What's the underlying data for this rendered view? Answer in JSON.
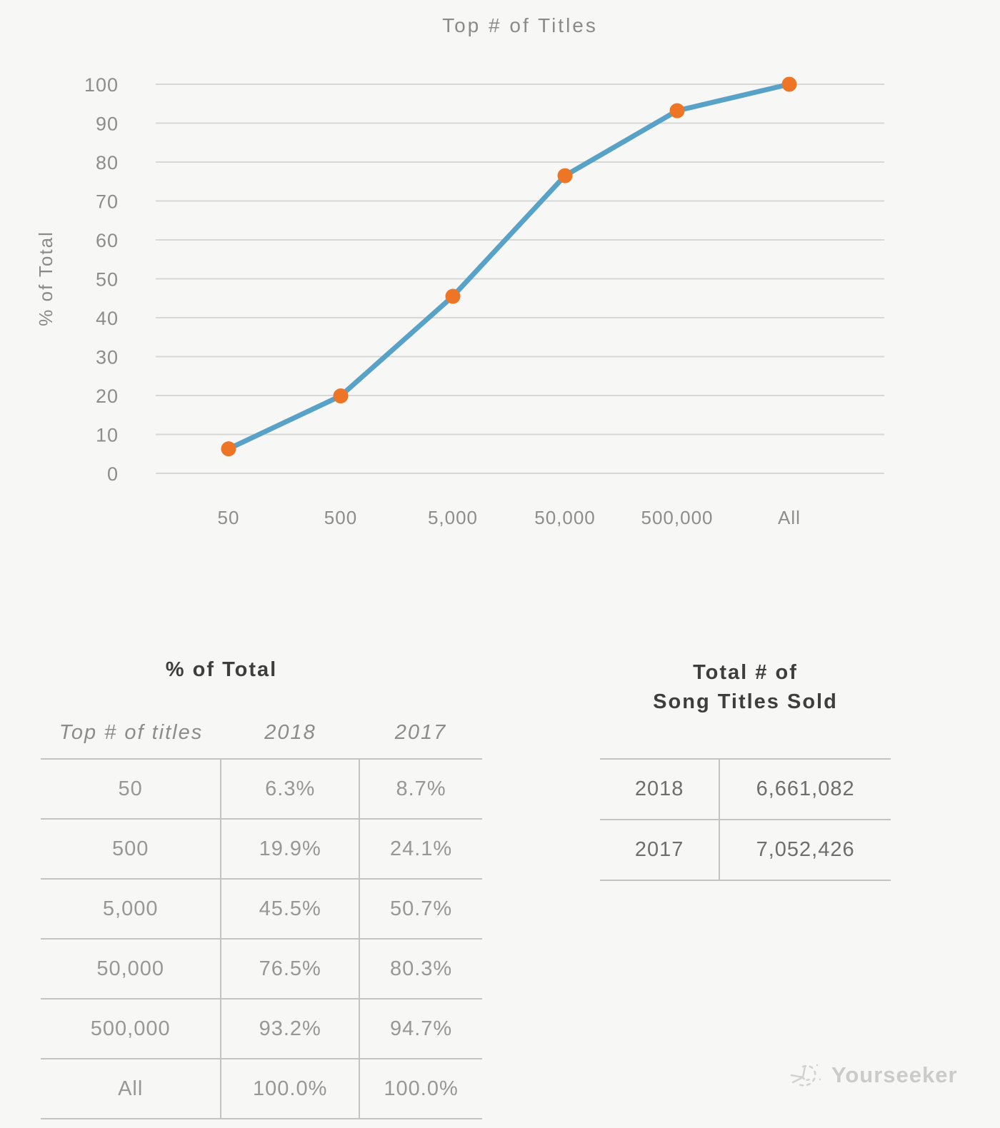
{
  "chart_data": {
    "type": "line",
    "title": "Top # of Titles",
    "xlabel": "",
    "ylabel": "% of Total",
    "categories": [
      "50",
      "500",
      "5,000",
      "50,000",
      "500,000",
      "All"
    ],
    "series": [
      {
        "name": "2018",
        "values": [
          6.3,
          19.9,
          45.5,
          76.5,
          93.2,
          100.0
        ]
      }
    ],
    "ylim": [
      0,
      100
    ],
    "yticks": [
      0,
      10,
      20,
      30,
      40,
      50,
      60,
      70,
      80,
      90,
      100
    ],
    "grid": true,
    "legend_position": "none",
    "line_color": "#58a1c7",
    "marker_color": "#ee7426",
    "grid_color": "#d7d7d5",
    "tick_color": "#8d8d8d"
  },
  "pct_table": {
    "title": "% of Total",
    "columns": [
      "Top # of titles",
      "2018",
      "2017"
    ],
    "rows": [
      [
        "50",
        "6.3%",
        "8.7%"
      ],
      [
        "500",
        "19.9%",
        "24.1%"
      ],
      [
        "5,000",
        "45.5%",
        "50.7%"
      ],
      [
        "50,000",
        "76.5%",
        "80.3%"
      ],
      [
        "500,000",
        "93.2%",
        "94.7%"
      ],
      [
        "All",
        "100.0%",
        "100.0%"
      ]
    ]
  },
  "totals_table": {
    "title_line1": "Total # of",
    "title_line2": "Song Titles Sold",
    "rows": [
      [
        "2018",
        "6,661,082"
      ],
      [
        "2017",
        "7,052,426"
      ]
    ]
  },
  "watermark": {
    "label": "Yourseeker"
  }
}
